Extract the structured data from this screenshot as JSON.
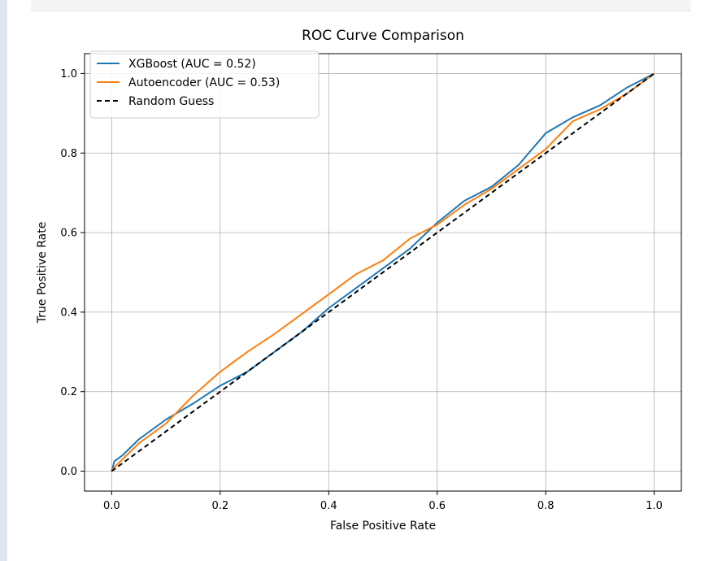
{
  "chart_data": {
    "type": "line",
    "title": "ROC Curve Comparison",
    "xlabel": "False Positive Rate",
    "ylabel": "True Positive Rate",
    "xlim": [
      -0.05,
      1.05
    ],
    "ylim": [
      -0.05,
      1.05
    ],
    "xticks": [
      "0.0",
      "0.2",
      "0.4",
      "0.6",
      "0.8",
      "1.0"
    ],
    "yticks": [
      "0.0",
      "0.2",
      "0.4",
      "0.6",
      "0.8",
      "1.0"
    ],
    "grid": true,
    "legend_position": "upper left",
    "series": [
      {
        "name": "XGBoost (AUC = 0.52)",
        "color": "#1f77b4",
        "style": "solid",
        "x": [
          0,
          0.005,
          0.02,
          0.05,
          0.1,
          0.15,
          0.2,
          0.25,
          0.3,
          0.35,
          0.4,
          0.45,
          0.5,
          0.55,
          0.6,
          0.65,
          0.7,
          0.75,
          0.8,
          0.85,
          0.9,
          0.95,
          1.0
        ],
        "y": [
          0.0,
          0.025,
          0.04,
          0.08,
          0.13,
          0.17,
          0.215,
          0.25,
          0.3,
          0.35,
          0.41,
          0.46,
          0.51,
          0.56,
          0.625,
          0.68,
          0.715,
          0.77,
          0.85,
          0.89,
          0.92,
          0.965,
          1.0
        ]
      },
      {
        "name": "Autoencoder (AUC = 0.53)",
        "color": "#ff7f0e",
        "style": "solid",
        "x": [
          0,
          0.005,
          0.02,
          0.05,
          0.1,
          0.15,
          0.2,
          0.25,
          0.3,
          0.35,
          0.4,
          0.45,
          0.5,
          0.55,
          0.6,
          0.65,
          0.7,
          0.75,
          0.8,
          0.85,
          0.9,
          0.95,
          1.0
        ],
        "y": [
          0.0,
          0.01,
          0.03,
          0.07,
          0.12,
          0.19,
          0.25,
          0.3,
          0.345,
          0.395,
          0.445,
          0.495,
          0.53,
          0.585,
          0.62,
          0.67,
          0.71,
          0.76,
          0.81,
          0.88,
          0.91,
          0.95,
          1.0
        ]
      },
      {
        "name": "Random Guess",
        "color": "#000000",
        "style": "dashed",
        "x": [
          0,
          1
        ],
        "y": [
          0,
          1
        ]
      }
    ]
  }
}
